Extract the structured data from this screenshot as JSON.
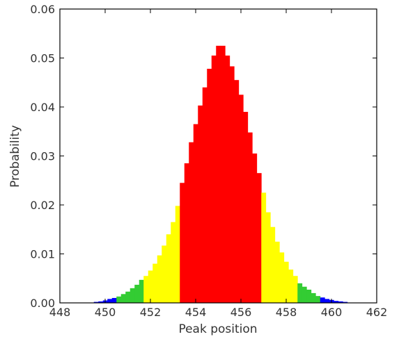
{
  "chart_data": {
    "type": "bar",
    "xlabel": "Peak position",
    "ylabel": "Probability",
    "xlim": [
      448,
      462
    ],
    "ylim": [
      0,
      0.06
    ],
    "xticks": [
      "448",
      "450",
      "452",
      "454",
      "456",
      "458",
      "460",
      "462"
    ],
    "yticks": [
      "0.00",
      "0.01",
      "0.02",
      "0.03",
      "0.04",
      "0.05",
      "0.06"
    ],
    "grid": false,
    "bin_width": 0.2,
    "bins": [
      {
        "x": 449.6,
        "y": 0.0002,
        "color": "#0000ff"
      },
      {
        "x": 449.8,
        "y": 0.0003,
        "color": "#0000ff"
      },
      {
        "x": 450.0,
        "y": 0.0005,
        "color": "#0000ff"
      },
      {
        "x": 450.2,
        "y": 0.0008,
        "color": "#0000ff"
      },
      {
        "x": 450.4,
        "y": 0.001,
        "color": "#0000ff"
      },
      {
        "x": 450.6,
        "y": 0.0013,
        "color": "#33cc33"
      },
      {
        "x": 450.8,
        "y": 0.0018,
        "color": "#33cc33"
      },
      {
        "x": 451.0,
        "y": 0.0023,
        "color": "#33cc33"
      },
      {
        "x": 451.2,
        "y": 0.003,
        "color": "#33cc33"
      },
      {
        "x": 451.4,
        "y": 0.0037,
        "color": "#33cc33"
      },
      {
        "x": 451.6,
        "y": 0.0047,
        "color": "#33cc33"
      },
      {
        "x": 451.8,
        "y": 0.0055,
        "color": "#ffff00"
      },
      {
        "x": 452.0,
        "y": 0.0066,
        "color": "#ffff00"
      },
      {
        "x": 452.2,
        "y": 0.008,
        "color": "#ffff00"
      },
      {
        "x": 452.4,
        "y": 0.0097,
        "color": "#ffff00"
      },
      {
        "x": 452.6,
        "y": 0.0117,
        "color": "#ffff00"
      },
      {
        "x": 452.8,
        "y": 0.014,
        "color": "#ffff00"
      },
      {
        "x": 453.0,
        "y": 0.0165,
        "color": "#ffff00"
      },
      {
        "x": 453.2,
        "y": 0.0198,
        "color": "#ffff00"
      },
      {
        "x": 453.4,
        "y": 0.0245,
        "color": "#ff0000"
      },
      {
        "x": 453.6,
        "y": 0.0285,
        "color": "#ff0000"
      },
      {
        "x": 453.8,
        "y": 0.0328,
        "color": "#ff0000"
      },
      {
        "x": 454.0,
        "y": 0.0365,
        "color": "#ff0000"
      },
      {
        "x": 454.2,
        "y": 0.0403,
        "color": "#ff0000"
      },
      {
        "x": 454.4,
        "y": 0.044,
        "color": "#ff0000"
      },
      {
        "x": 454.6,
        "y": 0.0478,
        "color": "#ff0000"
      },
      {
        "x": 454.8,
        "y": 0.0505,
        "color": "#ff0000"
      },
      {
        "x": 455.0,
        "y": 0.0525,
        "color": "#ff0000"
      },
      {
        "x": 455.2,
        "y": 0.0525,
        "color": "#ff0000"
      },
      {
        "x": 455.4,
        "y": 0.0505,
        "color": "#ff0000"
      },
      {
        "x": 455.6,
        "y": 0.0483,
        "color": "#ff0000"
      },
      {
        "x": 455.8,
        "y": 0.0455,
        "color": "#ff0000"
      },
      {
        "x": 456.0,
        "y": 0.0425,
        "color": "#ff0000"
      },
      {
        "x": 456.2,
        "y": 0.039,
        "color": "#ff0000"
      },
      {
        "x": 456.4,
        "y": 0.0348,
        "color": "#ff0000"
      },
      {
        "x": 456.6,
        "y": 0.0305,
        "color": "#ff0000"
      },
      {
        "x": 456.8,
        "y": 0.0265,
        "color": "#ff0000"
      },
      {
        "x": 457.0,
        "y": 0.0225,
        "color": "#ffff00"
      },
      {
        "x": 457.2,
        "y": 0.0185,
        "color": "#ffff00"
      },
      {
        "x": 457.4,
        "y": 0.0155,
        "color": "#ffff00"
      },
      {
        "x": 457.6,
        "y": 0.0125,
        "color": "#ffff00"
      },
      {
        "x": 457.8,
        "y": 0.0103,
        "color": "#ffff00"
      },
      {
        "x": 458.0,
        "y": 0.0084,
        "color": "#ffff00"
      },
      {
        "x": 458.2,
        "y": 0.0068,
        "color": "#ffff00"
      },
      {
        "x": 458.4,
        "y": 0.0055,
        "color": "#ffff00"
      },
      {
        "x": 458.6,
        "y": 0.004,
        "color": "#33cc33"
      },
      {
        "x": 458.8,
        "y": 0.0033,
        "color": "#33cc33"
      },
      {
        "x": 459.0,
        "y": 0.0027,
        "color": "#33cc33"
      },
      {
        "x": 459.2,
        "y": 0.002,
        "color": "#33cc33"
      },
      {
        "x": 459.4,
        "y": 0.0014,
        "color": "#33cc33"
      },
      {
        "x": 459.6,
        "y": 0.0011,
        "color": "#0000ff"
      },
      {
        "x": 459.8,
        "y": 0.0008,
        "color": "#0000ff"
      },
      {
        "x": 460.0,
        "y": 0.0006,
        "color": "#0000ff"
      },
      {
        "x": 460.2,
        "y": 0.0004,
        "color": "#0000ff"
      },
      {
        "x": 460.4,
        "y": 0.0003,
        "color": "#0000ff"
      },
      {
        "x": 460.6,
        "y": 0.0002,
        "color": "#0000ff"
      }
    ]
  }
}
